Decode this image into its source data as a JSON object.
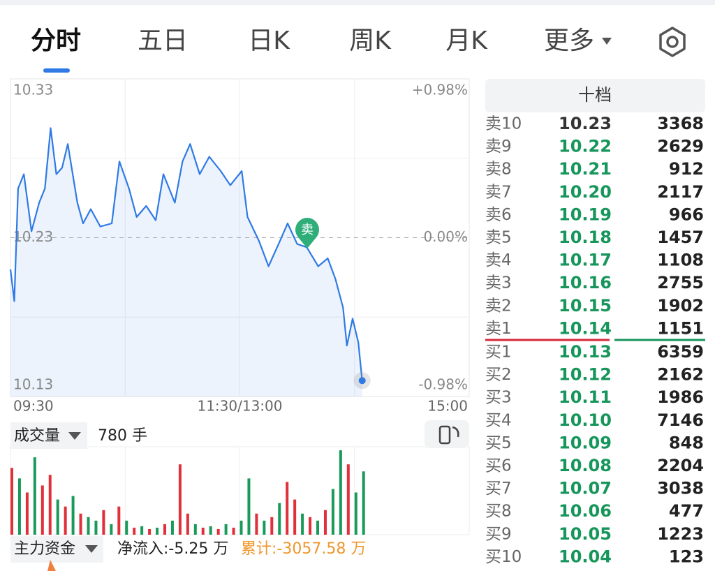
{
  "tabs": [
    "分时",
    "五日",
    "日K",
    "周K",
    "月K",
    "更多"
  ],
  "chart_data": [
    {
      "type": "line",
      "x": [
        0,
        2,
        4,
        7,
        11,
        15,
        18,
        21,
        24,
        27,
        30,
        35,
        38,
        42,
        47,
        53,
        57,
        62,
        66,
        71,
        76,
        80,
        86,
        90,
        94,
        99,
        104,
        110,
        115,
        121,
        124,
        130,
        135,
        141,
        145,
        150,
        155,
        161,
        166,
        170,
        174,
        176,
        179,
        182,
        184
      ],
      "values": [
        10.21,
        10.19,
        10.261,
        10.27,
        10.234,
        10.252,
        10.261,
        10.299,
        10.27,
        10.274,
        10.289,
        10.252,
        10.239,
        10.248,
        10.237,
        10.239,
        10.278,
        10.261,
        10.243,
        10.25,
        10.241,
        10.27,
        10.252,
        10.278,
        10.289,
        10.27,
        10.281,
        10.272,
        10.263,
        10.272,
        10.243,
        10.228,
        10.212,
        10.228,
        10.239,
        10.226,
        10.224,
        10.212,
        10.217,
        10.204,
        10.186,
        10.162,
        10.179,
        10.164,
        10.14
      ],
      "color": "#2f7ae5",
      "xlim": [
        0,
        240
      ],
      "xticks": [
        {
          "value": 0,
          "label": "09:30"
        },
        {
          "value": 120,
          "label": "11:30/13:00"
        },
        {
          "value": 240,
          "label": "15:00"
        }
      ],
      "ylim": [
        10.13,
        10.33
      ],
      "yticks": [
        10.33,
        10.23,
        10.13
      ],
      "y2lim": [
        -0.98,
        0.98
      ],
      "y2ticks": [
        {
          "value": 0.98,
          "label": "+0.98%"
        },
        {
          "value": 0,
          "label": "0.00%"
        },
        {
          "value": -0.98,
          "label": "-0.98%"
        }
      ],
      "marker_label": "卖",
      "grid": true
    },
    {
      "type": "bar",
      "title": "成交量",
      "current": "780 手",
      "x": [
        0,
        4,
        8,
        12,
        16,
        20,
        24,
        28,
        32,
        36,
        40,
        44,
        48,
        52,
        56,
        60,
        64,
        68,
        72,
        76,
        80,
        84,
        88,
        92,
        96,
        100,
        104,
        108,
        112,
        116,
        120,
        124,
        128,
        132,
        136,
        140,
        144,
        148,
        152,
        156,
        160,
        164,
        168,
        172,
        176,
        180,
        184
      ],
      "values": [
        950,
        800,
        600,
        1100,
        700,
        850,
        500,
        400,
        550,
        300,
        250,
        200,
        350,
        150,
        400,
        200,
        100,
        120,
        80,
        100,
        150,
        200,
        1000,
        300,
        150,
        100,
        120,
        80,
        150,
        100,
        200,
        800,
        300,
        200,
        250,
        450,
        750,
        500,
        300,
        250,
        200,
        350,
        650,
        1200,
        1000,
        600,
        900
      ],
      "colors": [
        "#e0303a",
        "#1a9a5a",
        "#e0303a",
        "#1a9a5a",
        "#e0303a",
        "#e0303a",
        "#1a9a5a",
        "#e0303a",
        "#1a9a5a",
        "#e0303a",
        "#1a9a5a",
        "#1a9a5a",
        "#e0303a",
        "#1a9a5a",
        "#e0303a",
        "#1a9a5a",
        "#e0303a",
        "#1a9a5a",
        "#e0303a",
        "#1a9a5a",
        "#e0303a",
        "#1a9a5a",
        "#e0303a",
        "#e0303a",
        "#1a9a5a",
        "#e0303a",
        "#1a9a5a",
        "#e0303a",
        "#1a9a5a",
        "#e0303a",
        "#1a9a5a",
        "#1a9a5a",
        "#e0303a",
        "#1a9a5a",
        "#e0303a",
        "#1a9a5a",
        "#e0303a",
        "#e0303a",
        "#1a9a5a",
        "#e0303a",
        "#1a9a5a",
        "#e0303a",
        "#1a9a5a",
        "#1a9a5a",
        "#e0303a",
        "#1a9a5a",
        "#1a9a5a"
      ],
      "xlim": [
        0,
        240
      ],
      "ylim": [
        0,
        1250
      ]
    }
  ],
  "funds": {
    "label": "主力资金",
    "net_inflow": "净流入:-5.25 万",
    "cumulative": "累计:-3057.58 万"
  },
  "order_book": {
    "title": "十档",
    "rows": [
      [
        "卖10",
        "10.23",
        "3368"
      ],
      [
        "卖9",
        "10.22",
        "2629"
      ],
      [
        "卖8",
        "10.21",
        "912"
      ],
      [
        "卖7",
        "10.20",
        "2117"
      ],
      [
        "卖6",
        "10.19",
        "966"
      ],
      [
        "卖5",
        "10.18",
        "1457"
      ],
      [
        "卖4",
        "10.17",
        "1108"
      ],
      [
        "卖3",
        "10.16",
        "2755"
      ],
      [
        "卖2",
        "10.15",
        "1902"
      ],
      [
        "卖1",
        "10.14",
        "1151"
      ],
      [
        "买1",
        "10.13",
        "6359"
      ],
      [
        "买2",
        "10.12",
        "2162"
      ],
      [
        "买3",
        "10.11",
        "1986"
      ],
      [
        "买4",
        "10.10",
        "7146"
      ],
      [
        "买5",
        "10.09",
        "848"
      ],
      [
        "买6",
        "10.08",
        "2204"
      ],
      [
        "买7",
        "10.07",
        "3038"
      ],
      [
        "买8",
        "10.06",
        "477"
      ],
      [
        "买9",
        "10.05",
        "1223"
      ],
      [
        "买10",
        "10.04",
        "123"
      ]
    ],
    "price_colors": [
      "#333333",
      "#16965a",
      "#16965a",
      "#16965a",
      "#16965a",
      "#16965a",
      "#16965a",
      "#16965a",
      "#16965a",
      "#16965a",
      "#16965a",
      "#16965a",
      "#16965a",
      "#16965a",
      "#16965a",
      "#16965a",
      "#16965a",
      "#16965a",
      "#16965a",
      "#16965a"
    ]
  }
}
